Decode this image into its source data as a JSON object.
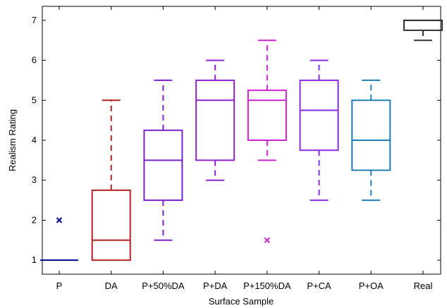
{
  "chart_data": {
    "type": "box",
    "xlabel": "Surface Sample",
    "ylabel": "Realism Rating",
    "ylim": [
      0.65,
      7.35
    ],
    "yticks": [
      1,
      2,
      3,
      4,
      5,
      6,
      7
    ],
    "grid": false,
    "categories": [
      "P",
      "DA",
      "P+50%DA",
      "P+DA",
      "P+150%DA",
      "P+CA",
      "P+OA",
      "Real"
    ],
    "boxes": [
      {
        "category": "P",
        "color": "#00008b",
        "min": 1,
        "q1": 1,
        "median": 1,
        "q3": 1,
        "max": 1,
        "outliers": [
          2
        ]
      },
      {
        "category": "DA",
        "color": "#b22222",
        "min": 1,
        "q1": 1,
        "median": 1.5,
        "q3": 2.75,
        "max": 5,
        "outliers": []
      },
      {
        "category": "P+50%DA",
        "color": "#7b22cc",
        "min": 1.5,
        "q1": 2.5,
        "median": 3.5,
        "q3": 4.25,
        "max": 5.5,
        "outliers": []
      },
      {
        "category": "P+DA",
        "color": "#8e22d0",
        "min": 3,
        "q1": 3.5,
        "median": 5,
        "q3": 5.5,
        "max": 6,
        "outliers": []
      },
      {
        "category": "P+150%DA",
        "color": "#cc22cc",
        "min": 3.5,
        "q1": 4,
        "median": 5,
        "q3": 5.25,
        "max": 6.5,
        "outliers": [
          1.5
        ]
      },
      {
        "category": "P+CA",
        "color": "#8a2be2",
        "min": 2.5,
        "q1": 3.75,
        "median": 4.75,
        "q3": 5.5,
        "max": 6,
        "outliers": []
      },
      {
        "category": "P+OA",
        "color": "#1f7fb4",
        "min": 2.5,
        "q1": 3.25,
        "median": 4,
        "q3": 5,
        "max": 5.5,
        "outliers": []
      },
      {
        "category": "Real",
        "color": "#333333",
        "min": 6.5,
        "q1": 6.75,
        "median": 7,
        "q3": 7,
        "max": 7,
        "outliers": []
      }
    ]
  }
}
